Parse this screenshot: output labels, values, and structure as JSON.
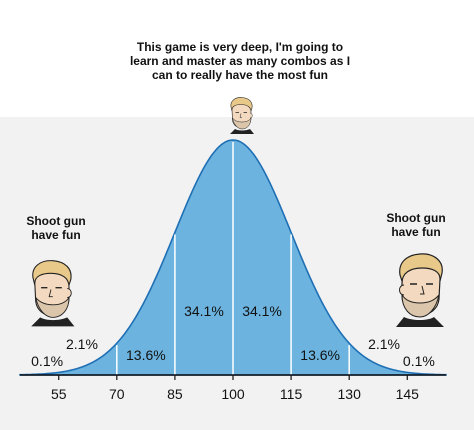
{
  "captions": {
    "top": [
      "This game is very deep, I'm going to",
      "learn and master as many combos as I",
      "can to really have the most fun"
    ],
    "left": [
      "Shoot gun",
      "have fun"
    ],
    "right": [
      "Shoot gun",
      "have fun"
    ]
  },
  "chart_data": {
    "type": "area",
    "distribution": "normal",
    "mean": 100,
    "sd": 15,
    "xlim": [
      45,
      155
    ],
    "ticks": [
      55,
      70,
      85,
      100,
      115,
      130,
      145
    ],
    "band_labels": [
      {
        "text": "0.1%",
        "x": 52
      },
      {
        "text": "2.1%",
        "x": 61,
        "raised": true
      },
      {
        "text": "13.6%",
        "x": 77.5
      },
      {
        "text": "34.1%",
        "x": 92.5
      },
      {
        "text": "34.1%",
        "x": 107.5
      },
      {
        "text": "13.6%",
        "x": 122.5
      },
      {
        "text": "2.1%",
        "x": 139,
        "raised": true
      },
      {
        "text": "0.1%",
        "x": 148
      }
    ],
    "fill_color": "#6cb4df",
    "line_color": "#1f6fb5"
  },
  "faces": {
    "top": "chad-face-icon",
    "left": "chad-face-icon",
    "right": "chad-face-icon"
  }
}
